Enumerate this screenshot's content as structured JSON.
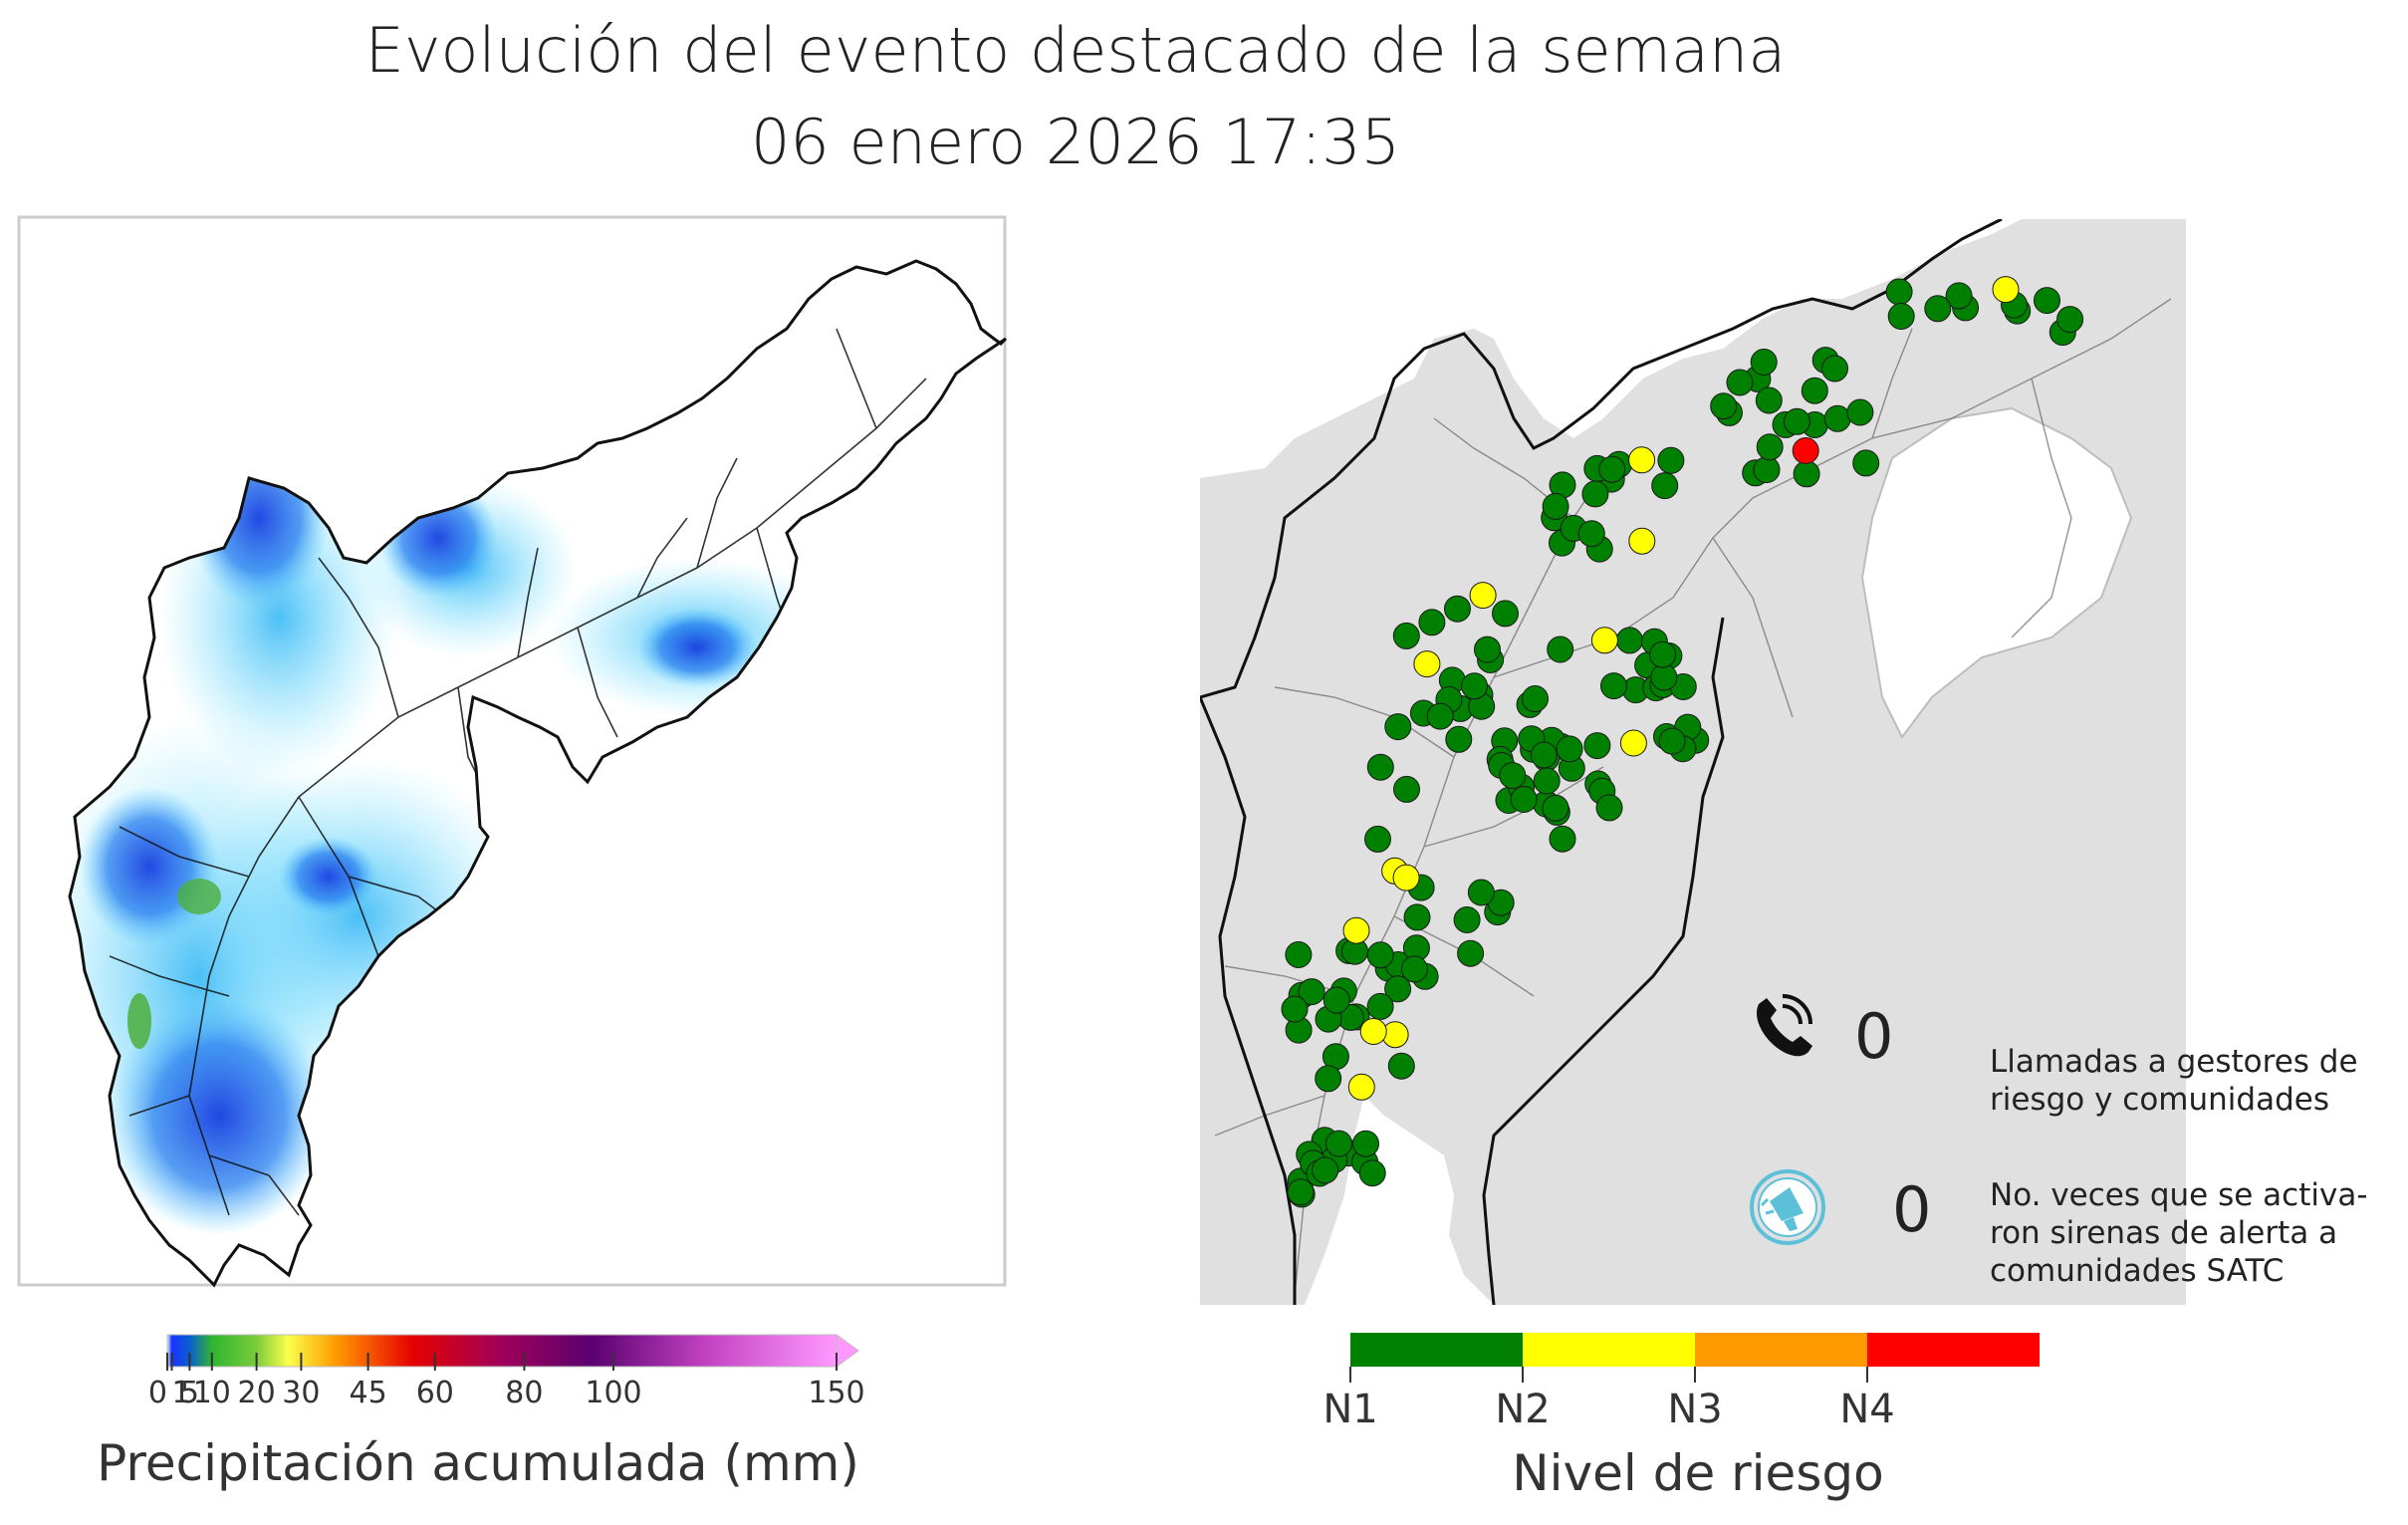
{
  "header": {
    "title_line1": "Evolución del evento destacado de la semana",
    "title_line2": "06 enero 2026 17:35"
  },
  "precip_colorbar": {
    "label": "Precipitación acumulada (mm)",
    "ticks": [
      "0",
      "1",
      "5",
      "10",
      "20",
      "30",
      "45",
      "60",
      "80",
      "100",
      "150"
    ],
    "tick_values": [
      0,
      1,
      5,
      10,
      20,
      30,
      45,
      60,
      80,
      100,
      150
    ],
    "max_value": 150,
    "gradient_stops": [
      {
        "value": 0,
        "color": "#e0f7ff"
      },
      {
        "value": 1,
        "color": "#1a33ff"
      },
      {
        "value": 5,
        "color": "#0a5fd0"
      },
      {
        "value": 10,
        "color": "#2fb52f"
      },
      {
        "value": 20,
        "color": "#7acc3a"
      },
      {
        "value": 27,
        "color": "#fbff4a"
      },
      {
        "value": 38,
        "color": "#ff9900"
      },
      {
        "value": 55,
        "color": "#e60000"
      },
      {
        "value": 75,
        "color": "#a0005a"
      },
      {
        "value": 95,
        "color": "#5a0070"
      },
      {
        "value": 120,
        "color": "#c040c0"
      },
      {
        "value": 150,
        "color": "#ff99ff"
      }
    ]
  },
  "risk_colorbar": {
    "label": "Nivel de riesgo",
    "levels": [
      {
        "name": "N1",
        "color": "#008000"
      },
      {
        "name": "N2",
        "color": "#ffff00"
      },
      {
        "name": "N3",
        "color": "#ff9900"
      },
      {
        "name": "N4",
        "color": "#ff0000"
      }
    ]
  },
  "stats": {
    "calls": {
      "icon": "phone-icon",
      "value": "0",
      "label": "Llamadas a gestores de\nriesgo y comunidades"
    },
    "sirens": {
      "icon": "siren-icon",
      "value": "0",
      "label": "No. veces que se activa-\nron sirenas de alerta a\ncomunidades SATC"
    }
  },
  "risk_points": {
    "counts": {
      "N1": 150,
      "N2": 13,
      "N3": 0,
      "N4": 1
    }
  }
}
